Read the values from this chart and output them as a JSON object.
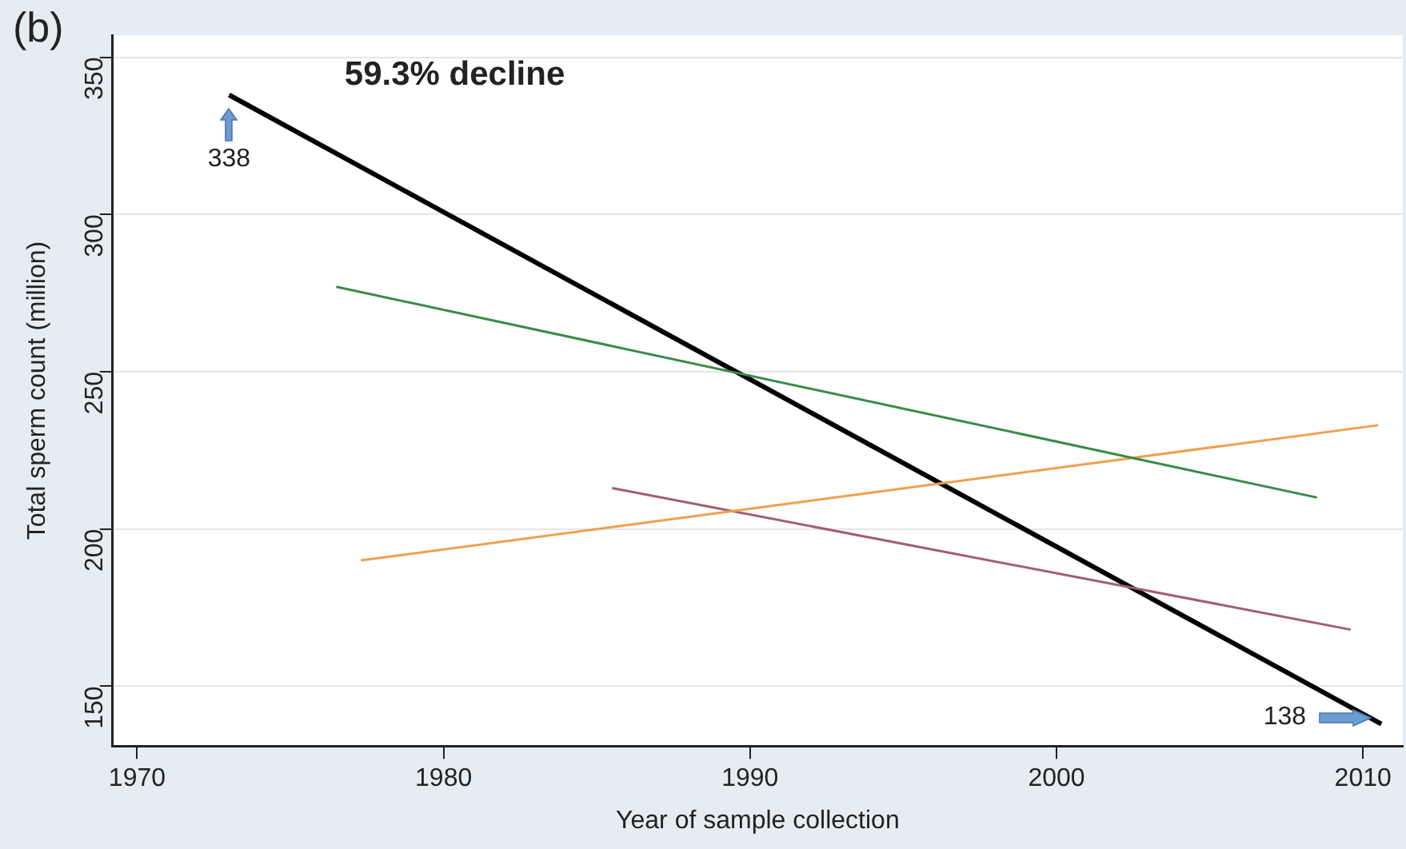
{
  "chart_data": {
    "type": "line",
    "title": "(b)",
    "xlabel": "Year of sample collection",
    "ylabel": "Total sperm count (million)",
    "series": [
      {
        "color": "#3a8a4a",
        "x": [
          1976.5,
          2008.5
        ],
        "values": [
          277,
          210
        ]
      },
      {
        "color": "#f0a050",
        "x": [
          1977.3,
          2010.5
        ],
        "values": [
          190,
          233
        ]
      },
      {
        "color": "#a06070",
        "x": [
          1985.5,
          2009.6
        ],
        "values": [
          213,
          168
        ]
      },
      {
        "color": "#000000",
        "x": [
          1973,
          2010.6
        ],
        "values": [
          338,
          138
        ]
      }
    ],
    "annotations": [
      "59.3% decline",
      {
        "text": "338",
        "x": 1973,
        "y": 338
      },
      {
        "text": "138",
        "x": 2010.6,
        "y": 138
      }
    ],
    "xlim": [
      1969.2,
      2011.3
    ],
    "ylim": [
      131,
      357
    ],
    "xticks": [
      1970,
      1980,
      1990,
      2000,
      2010
    ],
    "yticks": [
      150,
      200,
      250,
      300,
      350
    ],
    "grid": "y",
    "marker": "none",
    "line_style": "solid"
  }
}
